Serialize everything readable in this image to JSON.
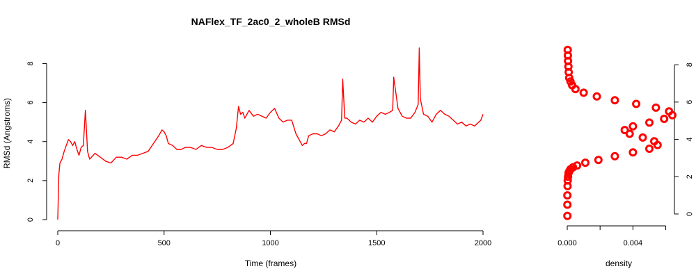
{
  "chart_data": [
    {
      "type": "line",
      "title": "NAFlex_TF_2ac0_2_wholeB RMSd",
      "xlabel": "Time (frames)",
      "ylabel": "RMSd (Angstroms)",
      "xlim": [
        0,
        2000
      ],
      "ylim": [
        0,
        8.8
      ],
      "x_ticks": [
        "0",
        "500",
        "1000",
        "1500",
        "2000"
      ],
      "y_ticks": [
        "0",
        "2",
        "4",
        "6",
        "8"
      ],
      "colors": {
        "series": "#ff0000",
        "axis": "#000000"
      },
      "grid": false,
      "series": [
        {
          "x": [
            0,
            5,
            10,
            20,
            30,
            40,
            50,
            60,
            70,
            80,
            90,
            100,
            110,
            120,
            130,
            140,
            150,
            175,
            200,
            225,
            250,
            275,
            300,
            325,
            350,
            375,
            400,
            425,
            450,
            475,
            490,
            500,
            510,
            520,
            540,
            560,
            580,
            600,
            625,
            650,
            675,
            700,
            725,
            750,
            775,
            800,
            825,
            840,
            850,
            860,
            870,
            880,
            900,
            920,
            940,
            960,
            980,
            1000,
            1020,
            1040,
            1060,
            1080,
            1100,
            1120,
            1140,
            1150,
            1160,
            1170,
            1180,
            1200,
            1220,
            1240,
            1260,
            1280,
            1300,
            1320,
            1335,
            1340,
            1350,
            1360,
            1380,
            1400,
            1420,
            1440,
            1460,
            1480,
            1500,
            1520,
            1540,
            1560,
            1575,
            1580,
            1600,
            1620,
            1640,
            1660,
            1680,
            1695,
            1700,
            1705,
            1720,
            1740,
            1760,
            1780,
            1800,
            1820,
            1840,
            1860,
            1880,
            1900,
            1920,
            1940,
            1960,
            1980,
            1990,
            2000
          ],
          "y": [
            0,
            2.3,
            2.9,
            3.1,
            3.5,
            3.8,
            4.1,
            4.0,
            3.8,
            4.0,
            3.6,
            3.3,
            3.7,
            3.8,
            5.6,
            3.5,
            3.1,
            3.4,
            3.2,
            3.0,
            2.9,
            3.2,
            3.2,
            3.1,
            3.3,
            3.3,
            3.4,
            3.5,
            3.9,
            4.3,
            4.6,
            4.5,
            4.3,
            3.9,
            3.8,
            3.6,
            3.6,
            3.7,
            3.7,
            3.6,
            3.8,
            3.7,
            3.7,
            3.6,
            3.6,
            3.7,
            3.9,
            4.7,
            5.8,
            5.4,
            5.5,
            5.2,
            5.6,
            5.3,
            5.4,
            5.3,
            5.2,
            5.5,
            5.7,
            5.2,
            5.0,
            5.1,
            5.1,
            4.4,
            4.0,
            3.8,
            3.9,
            3.9,
            4.3,
            4.4,
            4.4,
            4.3,
            4.4,
            4.6,
            4.5,
            4.8,
            5.1,
            7.2,
            5.2,
            5.2,
            5.0,
            4.9,
            5.1,
            5.0,
            5.2,
            5.0,
            5.3,
            5.5,
            5.4,
            5.5,
            5.6,
            7.3,
            5.7,
            5.3,
            5.2,
            5.2,
            5.5,
            5.9,
            8.8,
            6.2,
            5.4,
            5.3,
            5.0,
            5.4,
            5.6,
            5.4,
            5.3,
            5.1,
            4.9,
            5.0,
            4.8,
            4.9,
            4.8,
            5.0,
            5.1,
            5.4
          ],
          "ticks_x_at": [
            0,
            500,
            1000,
            1500,
            2000
          ],
          "ticks_y_at": [
            0,
            2,
            4,
            6,
            8
          ]
        }
      ]
    },
    {
      "type": "scatter",
      "xlabel": "density",
      "ylabel": "",
      "xlim": [
        0,
        0.0064
      ],
      "ylim": [
        -0.3,
        8.9
      ],
      "x_ticks": [
        "0.000",
        "0.004"
      ],
      "y_ticks": [
        "0",
        "2",
        "4",
        "6",
        "8"
      ],
      "colors": {
        "series": "#ff0000",
        "axis": "#000000"
      },
      "grid": false,
      "series": [
        {
          "x": [
            1e-05,
            1e-05,
            1e-05,
            2e-05,
            3e-05,
            5e-05,
            8e-05,
            0.00013,
            0.0002,
            0.00035,
            0.0006,
            0.0011,
            0.0019,
            0.0029,
            0.004,
            0.005,
            0.0055,
            0.0053,
            0.0046,
            0.0038,
            0.0035,
            0.004,
            0.005,
            0.0059,
            0.0064,
            0.0062,
            0.0054,
            0.0042,
            0.0029,
            0.0018,
            0.001,
            0.0005,
            0.0003,
            0.0002,
            0.00012,
            9e-05,
            7e-05,
            5e-05,
            4e-05,
            3e-05
          ],
          "y": [
            -0.1,
            0.5,
            1.0,
            1.5,
            1.8,
            2.0,
            2.2,
            2.3,
            2.4,
            2.5,
            2.6,
            2.75,
            2.9,
            3.1,
            3.3,
            3.5,
            3.7,
            3.9,
            4.1,
            4.3,
            4.5,
            4.7,
            4.9,
            5.1,
            5.3,
            5.5,
            5.7,
            5.9,
            6.1,
            6.3,
            6.5,
            6.7,
            6.9,
            7.1,
            7.3,
            7.6,
            7.9,
            8.2,
            8.5,
            8.8
          ],
          "ticks_x_at": [
            0,
            0.004
          ],
          "ticks_y_at": [
            0,
            2,
            4,
            6,
            8
          ]
        }
      ]
    }
  ]
}
